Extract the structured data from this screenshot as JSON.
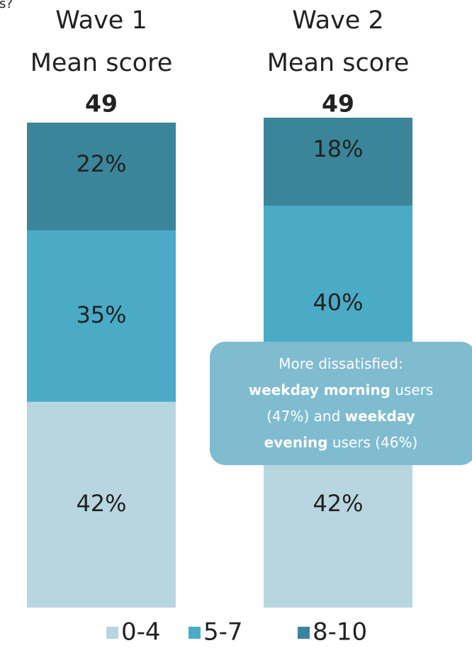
{
  "fragment": "is?",
  "chart_data": {
    "type": "stacked_bar",
    "categories": [
      "Wave 1",
      "Wave 2"
    ],
    "mean_label": "Mean score",
    "mean_scores": [
      49,
      49
    ],
    "series": [
      {
        "name": "0-4",
        "color": "#b8d6e0",
        "values": [
          42,
          42
        ],
        "value_labels": [
          "42%",
          "42%"
        ]
      },
      {
        "name": "5-7",
        "color": "#4aabc6",
        "values": [
          35,
          40
        ],
        "value_labels": [
          "35%",
          "40%"
        ]
      },
      {
        "name": "8-10",
        "color": "#3a8599",
        "values": [
          22,
          18
        ],
        "value_labels": [
          "22%",
          "18%"
        ]
      }
    ],
    "ylim": [
      0,
      100
    ],
    "annotation": {
      "color": "#7fbcd0",
      "lines": [
        [
          {
            "text": "More dissatisfied:"
          }
        ],
        [
          {
            "text": "weekday morning",
            "bold": true
          },
          {
            "text": " users"
          }
        ],
        [
          {
            "text": "(47%) and "
          },
          {
            "text": "weekday",
            "bold": true
          }
        ],
        [
          {
            "text": "evening",
            "bold": true
          },
          {
            "text": " users (46%)"
          }
        ]
      ]
    }
  }
}
